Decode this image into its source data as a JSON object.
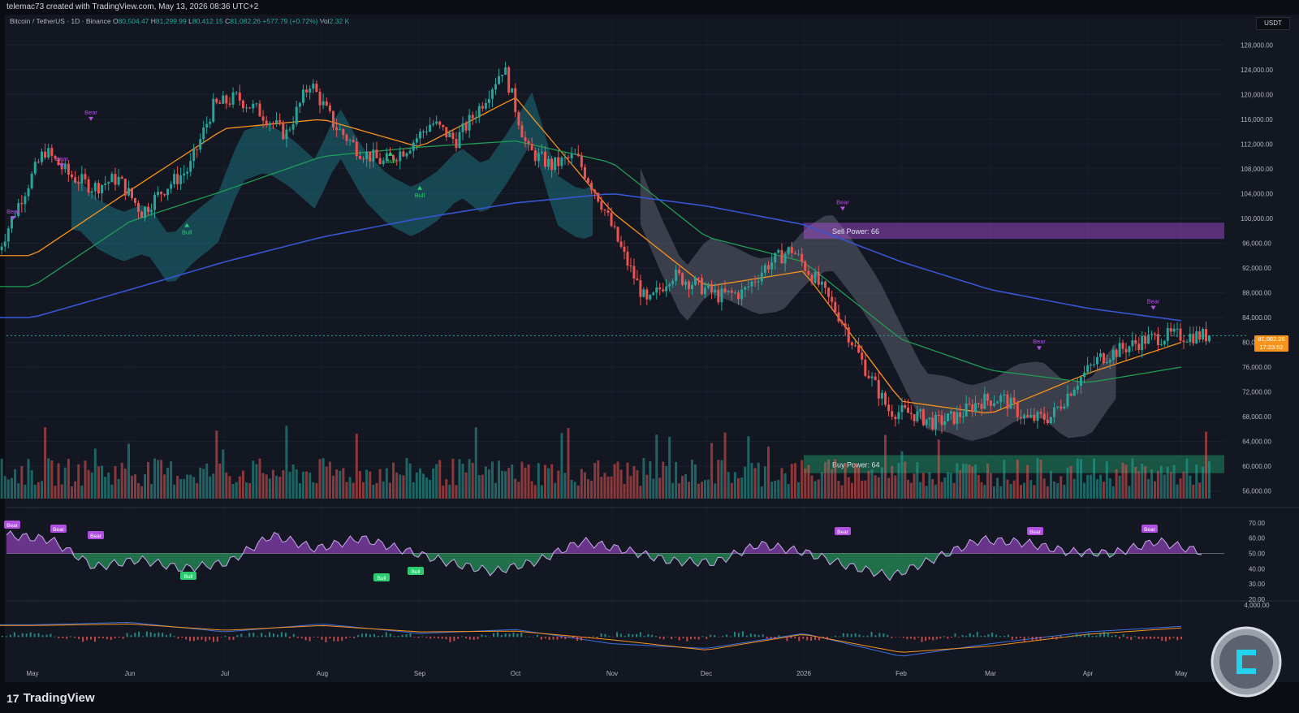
{
  "topbar": {
    "credit": "telemac73 created with TradingView.com, May 13, 2026 08:36 UTC+2"
  },
  "symbol": {
    "pair": "Bitcoin / TetherUS · 1D · Binance",
    "open_label": "O",
    "open": "80,504.47",
    "high_label": "H",
    "high": "81,299.99",
    "low_label": "L",
    "low": "80,412.15",
    "close_label": "C",
    "close": "81,082.26",
    "change": "+577.79 (+0.72%)",
    "vol_label": "Vol",
    "vol": "2.32 K"
  },
  "currency_badge": "USDT",
  "last_price": {
    "price": "81,082.26",
    "countdown": "17:23:52"
  },
  "annotations": {
    "sell_power": "Sell Power: 66",
    "buy_power": "Buy Power: 64",
    "bear": "Bear",
    "bull": "Bull"
  },
  "brand": {
    "name": "TradingView",
    "mark": "17"
  },
  "colors": {
    "background": "#131722",
    "up": "#26a69a",
    "down": "#ef5350",
    "ema_fast": "#f7931a",
    "ma_mid": "#1f9d55",
    "ma_long": "#3656d4",
    "cloud_teal": "#1e6f7d",
    "cloud_gray": "#5d6070",
    "bear_purple": "#b04fe0",
    "bull_green": "#2ecc71",
    "price_tag": "#f7931a"
  },
  "chart_data": [
    {
      "type": "candlestick",
      "title": "Bitcoin / TetherUS · 1D · Binance",
      "x": [
        "May",
        "Jun",
        "Jul",
        "Aug",
        "Sep",
        "Oct",
        "Nov",
        "Dec",
        "2026",
        "Feb",
        "Mar",
        "Apr",
        "May"
      ],
      "ylim": [
        54000,
        130000
      ],
      "yticks": [
        "128,000.00",
        "124,000.00",
        "120,000.00",
        "116,000.00",
        "112,000.00",
        "108,000.00",
        "104,000.00",
        "100,000.00",
        "96,000.00",
        "92,000.00",
        "88,000.00",
        "84,000.00",
        "80,000.00",
        "76,000.00",
        "72,000.00",
        "68,000.00",
        "64,000.00",
        "60,000.00",
        "56,000.00"
      ],
      "price_path_by_month": [
        {
          "month": "May",
          "values": [
            94000,
            103000,
            111000,
            107000
          ]
        },
        {
          "month": "Jun",
          "values": [
            105000,
            106500,
            101000,
            105000
          ]
        },
        {
          "month": "Jul",
          "values": [
            108000,
            118000,
            119500,
            117000
          ]
        },
        {
          "month": "Aug",
          "values": [
            113500,
            122000,
            115000,
            111000
          ]
        },
        {
          "month": "Sep",
          "values": [
            109000,
            111500,
            115500,
            112500
          ]
        },
        {
          "month": "Oct",
          "values": [
            118000,
            124500,
            111000,
            108500
          ]
        },
        {
          "month": "Nov",
          "values": [
            110000,
            103000,
            94000,
            86000
          ]
        },
        {
          "month": "Dec",
          "values": [
            91000,
            89500,
            87500,
            88000
          ]
        },
        {
          "month": "2026",
          "values": [
            92500,
            95000,
            90000,
            84000
          ]
        },
        {
          "month": "Feb",
          "values": [
            76000,
            69000,
            68500,
            67000
          ]
        },
        {
          "month": "Mar",
          "values": [
            68000,
            70500,
            71000,
            67500
          ]
        },
        {
          "month": "Apr",
          "values": [
            68000,
            73500,
            77500,
            79000
          ]
        },
        {
          "month": "May",
          "values": [
            80500,
            81082
          ]
        }
      ],
      "overlays": [
        {
          "name": "EMA fast",
          "values_by_month": [
            94000,
            104500,
            114500,
            116000,
            111500,
            119500,
            101000,
            89000,
            91500,
            70500,
            68500,
            75000,
            80000
          ]
        },
        {
          "name": "MA mid",
          "values_by_month": [
            89000,
            99500,
            104500,
            110000,
            111500,
            112500,
            109000,
            97000,
            93000,
            80500,
            75500,
            73500,
            76000
          ]
        },
        {
          "name": "MA long",
          "values_by_month": [
            84000,
            88500,
            93000,
            97000,
            100000,
            102500,
            104000,
            102000,
            99000,
            93000,
            88500,
            85500,
            83500
          ]
        }
      ],
      "zones": [
        {
          "label": "Sell Power: 66",
          "low": 96700,
          "high": 99300
        },
        {
          "label": "Buy Power: 64",
          "low": 58900,
          "high": 61800
        }
      ],
      "markers": [
        {
          "label": "Bear",
          "month": "May"
        },
        {
          "label": "Bear",
          "month": "May"
        },
        {
          "label": "Bear",
          "month": "May"
        },
        {
          "label": "Bull",
          "month": "Jun"
        },
        {
          "label": "Bull",
          "month": "Aug"
        },
        {
          "label": "Bull",
          "month": "Sep"
        },
        {
          "label": "Bear",
          "month": "2026"
        },
        {
          "label": "Bear",
          "month": "Mar"
        },
        {
          "label": "Bear",
          "month": "Apr"
        }
      ],
      "last_price": 81082.26
    },
    {
      "type": "area",
      "name": "oscillator",
      "ylim": [
        20,
        72
      ],
      "yticks": [
        "70.00",
        "60.00",
        "50.00",
        "40.00",
        "30.00",
        "20.00"
      ],
      "midline": 50,
      "values_by_month": [
        62,
        59,
        41,
        46,
        40,
        44,
        62,
        53,
        60,
        52,
        44,
        38,
        45,
        58,
        52,
        45,
        44,
        56,
        51,
        42,
        35,
        47,
        59,
        57,
        51,
        50,
        58,
        51
      ],
      "markers": [
        "Bear",
        "Bear",
        "Bear",
        "Bull",
        "Bull",
        "Bull",
        "Bear",
        "Bear",
        "Bear"
      ]
    },
    {
      "type": "line",
      "name": "MACD",
      "yticks": [
        "4,000.00"
      ],
      "series": [
        {
          "values_by_month": [
            1500,
            1800,
            600,
            1600,
            400,
            900,
            -900,
            -1500,
            400,
            -2500,
            -900,
            600,
            1300
          ]
        },
        {
          "values_by_month": [
            1400,
            1600,
            800,
            1400,
            600,
            700,
            -400,
            -1700,
            300,
            -2000,
            -1200,
            300,
            1100
          ]
        }
      ]
    }
  ]
}
